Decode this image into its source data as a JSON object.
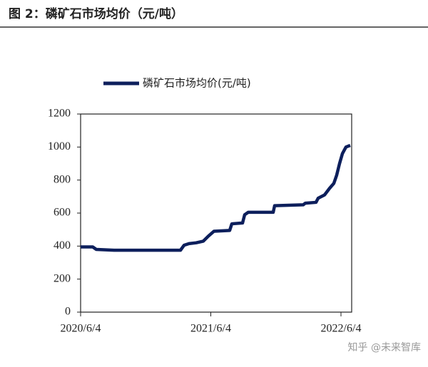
{
  "chart_data": {
    "type": "line",
    "title": "图 2：磷矿石市场均价（元/吨）",
    "watermark": "知乎 @未来智库",
    "x": [
      "2020/6/4",
      "2020/7/8",
      "2020/7/18",
      "2020/9/6",
      "2020/11/25",
      "2021/3/11",
      "2021/3/21",
      "2021/4/4",
      "2021/4/24",
      "2021/5/14",
      "2021/5/28",
      "2021/6/13",
      "2021/7/27",
      "2021/8/2",
      "2021/9/1",
      "2021/9/7",
      "2021/9/17",
      "2021/11/26",
      "2021/11/30",
      "2022/2/18",
      "2022/2/24",
      "2022/3/26",
      "2022/4/1",
      "2022/4/19",
      "2022/5/3",
      "2022/5/15",
      "2022/5/23",
      "2022/5/31",
      "2022/6/8",
      "2022/6/18",
      "2022/6/30"
    ],
    "series": [
      {
        "name": "磷矿石市场均价(元/吨)",
        "color": "#0d1f5c",
        "values": [
          395,
          395,
          380,
          375,
          375,
          375,
          405,
          415,
          420,
          430,
          460,
          490,
          495,
          535,
          540,
          590,
          605,
          605,
          645,
          650,
          660,
          665,
          690,
          710,
          750,
          780,
          830,
          900,
          960,
          1000,
          1010
        ]
      }
    ],
    "xlim": [
      "2020/6/4",
      "2022/7/4"
    ],
    "xticks": [
      "2020/6/4",
      "2021/6/4",
      "2022/6/4"
    ],
    "ylim": [
      0,
      1200
    ],
    "yticks": [
      0,
      200,
      400,
      600,
      800,
      1000,
      1200
    ]
  }
}
